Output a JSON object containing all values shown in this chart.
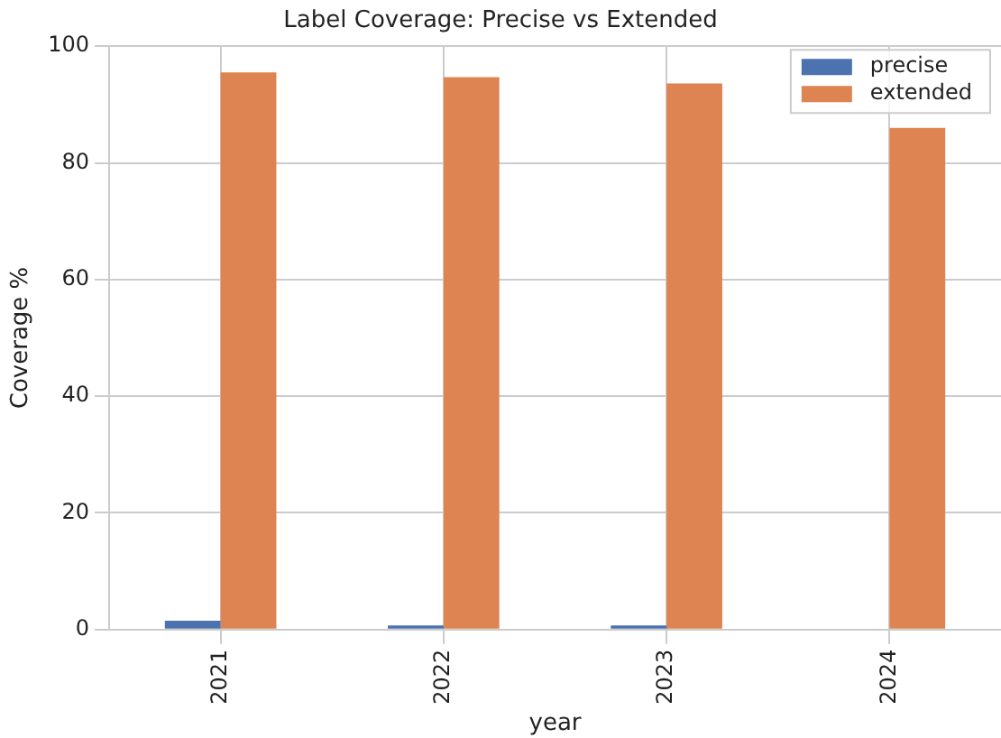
{
  "chart_data": {
    "type": "bar",
    "title": "Label Coverage: Precise vs Extended",
    "xlabel": "year",
    "ylabel": "Coverage %",
    "categories": [
      "2021",
      "2022",
      "2023",
      "2024"
    ],
    "series": [
      {
        "name": "precise",
        "color": "#4c72b0",
        "values": [
          1.5,
          0.7,
          0.7,
          0
        ]
      },
      {
        "name": "extended",
        "color": "#dd8452",
        "values": [
          95.5,
          94.7,
          93.6,
          86
        ]
      }
    ],
    "ylim": [
      0,
      100
    ],
    "yticks": [
      0,
      20,
      40,
      60,
      80,
      100
    ],
    "grid": true,
    "legend": "top right"
  }
}
